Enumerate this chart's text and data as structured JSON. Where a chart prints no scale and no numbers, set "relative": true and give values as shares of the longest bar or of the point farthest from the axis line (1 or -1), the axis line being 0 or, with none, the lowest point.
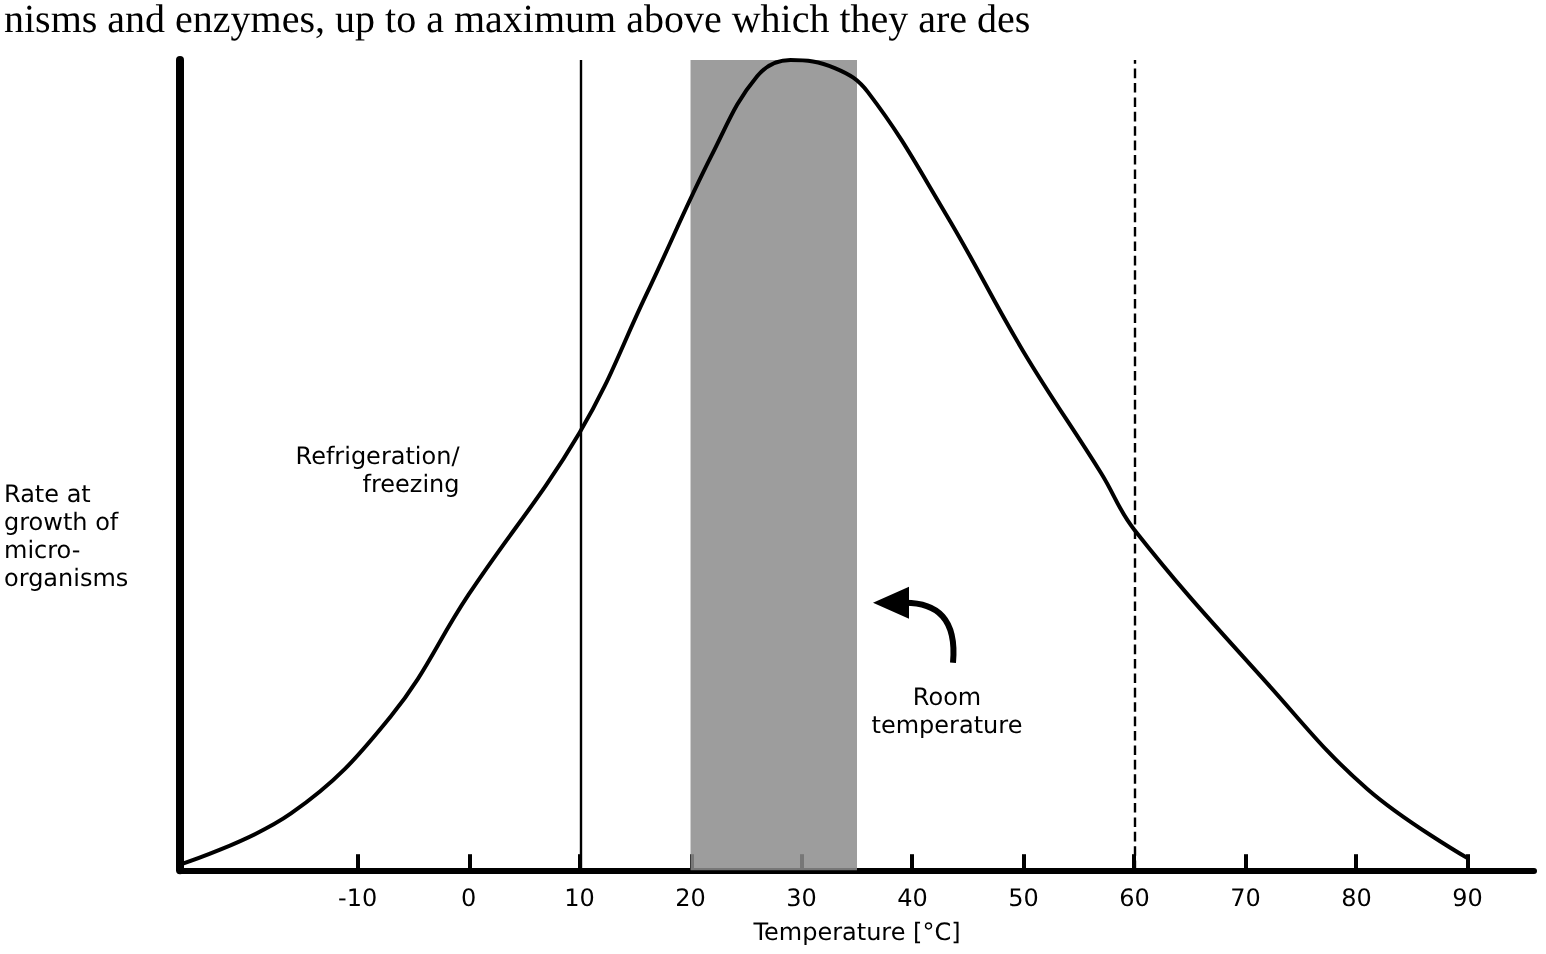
{
  "chart_data": {
    "type": "line",
    "relative": true,
    "xlabel": "Temperature [°C]",
    "ylabel": "Rate at\ngrowth of\nmicro-\norganisms",
    "x": [
      -26,
      -16,
      -7,
      0,
      10,
      16,
      22,
      26,
      29,
      33,
      36,
      43,
      50,
      57,
      60,
      72,
      81,
      90
    ],
    "series": [
      {
        "color": "#000000",
        "values": [
          0.007,
          0.07,
          0.19,
          0.34,
          0.54,
          0.71,
          0.885,
          0.98,
          1,
          0.99,
          0.96,
          0.81,
          0.64,
          0.49,
          0.42,
          0.23,
          0.1,
          0.015
        ]
      }
    ],
    "xlim": [
      -26,
      96
    ],
    "xticks": [
      -10,
      0,
      10,
      20,
      30,
      40,
      50,
      60,
      70,
      80,
      90
    ],
    "ref_lines": [
      {
        "axis": "x",
        "value": 10,
        "label": "Refrigeration/\nfreezing",
        "line_style": "solid",
        "color": "#000000"
      },
      {
        "axis": "x",
        "value": 60,
        "line_style": "dashed",
        "color": "#000000"
      }
    ],
    "bands": [
      {
        "axis": "x",
        "from": 20,
        "to": 35,
        "label": "Room\ntemperature",
        "color": "#8c8c8c"
      }
    ],
    "annotations": [
      "nisms and enzymes, up to a maximum above which they are des"
    ],
    "marker": "none",
    "line_style": "solid"
  }
}
